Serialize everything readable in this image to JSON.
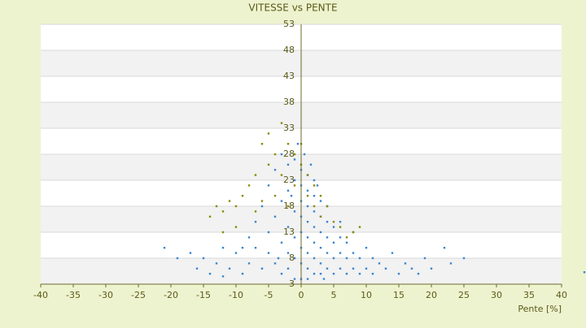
{
  "chart_data": {
    "type": "scatter",
    "title": "VITESSE vs PENTE",
    "x_label": "Pente [%]",
    "xlim": [
      -40,
      40
    ],
    "xticks": [
      -40,
      -35,
      -30,
      -25,
      -20,
      -15,
      -10,
      -5,
      0,
      5,
      10,
      15,
      20,
      25,
      30,
      35,
      40
    ],
    "ylim": [
      3,
      53
    ],
    "yticks": [
      3,
      8,
      13,
      18,
      23,
      28,
      33,
      38,
      43,
      48,
      53
    ],
    "grid": true,
    "series": [
      {
        "color": "#3a86d0",
        "x": [
          -21,
          -19,
          -17,
          -16,
          -15,
          -14,
          -13,
          -12,
          -11,
          -10,
          -9,
          -8,
          -8,
          -7,
          -7,
          -6,
          -6,
          -5,
          -5,
          -5,
          -4,
          -4,
          -4,
          -3,
          -3,
          -3,
          -3,
          -2,
          -2,
          -2,
          -2,
          -2,
          -1,
          -1,
          -1,
          -1,
          -1,
          -1,
          0,
          0,
          0,
          0,
          0,
          0,
          0,
          0,
          1,
          1,
          1,
          1,
          1,
          1,
          1,
          1,
          2,
          2,
          2,
          2,
          2,
          2,
          2,
          3,
          3,
          3,
          3,
          3,
          3,
          4,
          4,
          4,
          4,
          4,
          5,
          5,
          5,
          5,
          6,
          6,
          6,
          7,
          7,
          7,
          8,
          8,
          9,
          9,
          10,
          10,
          11,
          12,
          13,
          14,
          15,
          16,
          17,
          18,
          19,
          20,
          22,
          23,
          25,
          43.5,
          -0.5,
          0.5,
          1.5,
          -1.5,
          2.5,
          3.5,
          -3.5,
          -9,
          -12,
          6,
          8,
          11
        ],
        "y": [
          10,
          8,
          9,
          6,
          8,
          5,
          7,
          10,
          6,
          9,
          5,
          12,
          7,
          10,
          15,
          6,
          18,
          9,
          22,
          13,
          7,
          16,
          25,
          5,
          11,
          19,
          28,
          6,
          9,
          14,
          21,
          26,
          4,
          8,
          12,
          17,
          23,
          27,
          4,
          7,
          10,
          13,
          16,
          19,
          22,
          25,
          4,
          6,
          9,
          12,
          15,
          18,
          21,
          24,
          5,
          8,
          11,
          14,
          17,
          20,
          23,
          5,
          7,
          10,
          13,
          16,
          19,
          6,
          9,
          12,
          15,
          18,
          5,
          8,
          11,
          14,
          6,
          9,
          12,
          5,
          8,
          11,
          6,
          9,
          5,
          8,
          6,
          10,
          5,
          7,
          6,
          9,
          5,
          7,
          6,
          5,
          8,
          6,
          10,
          7,
          8,
          5.3,
          30,
          28,
          26,
          20,
          22,
          4,
          8,
          10,
          4.5,
          15,
          13,
          8
        ]
      },
      {
        "color": "#8a8a00",
        "x": [
          -14,
          -13,
          -12,
          -11,
          -10,
          -9,
          -8,
          -7,
          -6,
          -5,
          -5,
          -4,
          -4,
          -3,
          -3,
          -2,
          -2,
          -1,
          -1,
          0,
          0,
          1,
          1,
          2,
          2,
          3,
          3,
          4,
          5,
          6,
          7,
          8,
          9,
          -6,
          -7,
          -10,
          -12
        ],
        "y": [
          16,
          18,
          17,
          19,
          14,
          20,
          22,
          24,
          30,
          32,
          26,
          28,
          20,
          34,
          24,
          30,
          18,
          28,
          22,
          30,
          26,
          24,
          20,
          22,
          18,
          20,
          16,
          18,
          15,
          14,
          12,
          13,
          14,
          19,
          17,
          18,
          13
        ]
      }
    ]
  }
}
